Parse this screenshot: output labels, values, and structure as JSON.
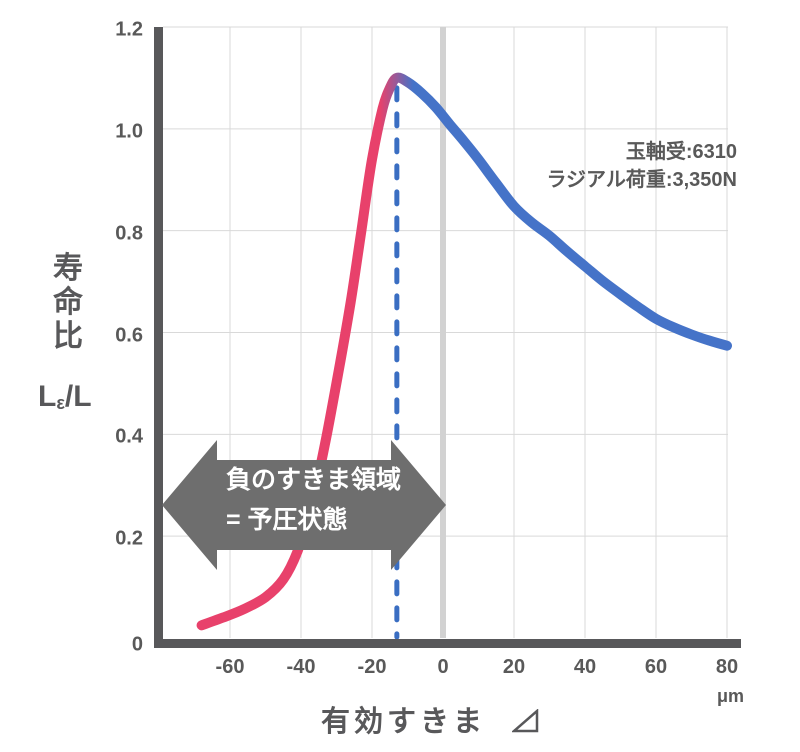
{
  "chart_data": {
    "type": "line",
    "title": "",
    "xlabel": "有効すきま　⊿",
    "xlabel_text": "有効すきま",
    "xlabel_symbol": "⊿",
    "x_unit": "μm",
    "ylabel": "寿命比 Lε/L",
    "ylabel_vertical": "寿命比",
    "ylabel_formula": {
      "main": "L",
      "sub": "ε",
      "rest": "/L"
    },
    "xlim": [
      -80,
      83
    ],
    "ylim": [
      0,
      1.2
    ],
    "grid": true,
    "x_ticks": {
      "values": [
        -60,
        -40,
        -20,
        0,
        20,
        40,
        60,
        80
      ],
      "labels": [
        "-60",
        "-40",
        "-20",
        "0",
        "20",
        "40",
        "60",
        "80"
      ]
    },
    "y_ticks": {
      "values": [
        0,
        0.2,
        0.4,
        0.6,
        0.8,
        1.0,
        1.2
      ],
      "labels": [
        "0",
        "0.2",
        "0.4",
        "0.6",
        "0.8",
        "1.0",
        "1.2"
      ]
    },
    "series": [
      {
        "name": "life-ratio-vs-effective-clearance",
        "points": [
          [
            -68,
            0.025
          ],
          [
            -62,
            0.04
          ],
          [
            -56,
            0.057
          ],
          [
            -50,
            0.08
          ],
          [
            -45,
            0.115
          ],
          [
            -41,
            0.17
          ],
          [
            -37,
            0.26
          ],
          [
            -33,
            0.39
          ],
          [
            -29,
            0.54
          ],
          [
            -26,
            0.66
          ],
          [
            -23,
            0.8
          ],
          [
            -20,
            0.94
          ],
          [
            -17,
            1.04
          ],
          [
            -15,
            1.08
          ],
          [
            -13,
            1.1
          ],
          [
            -10,
            1.092
          ],
          [
            -6,
            1.07
          ],
          [
            -2,
            1.042
          ],
          [
            2,
            1.008
          ],
          [
            6,
            0.975
          ],
          [
            10,
            0.94
          ],
          [
            15,
            0.893
          ],
          [
            20,
            0.848
          ],
          [
            25,
            0.816
          ],
          [
            30,
            0.79
          ],
          [
            35,
            0.759
          ],
          [
            40,
            0.73
          ],
          [
            45,
            0.701
          ],
          [
            50,
            0.675
          ],
          [
            55,
            0.65
          ],
          [
            60,
            0.627
          ],
          [
            65,
            0.61
          ],
          [
            70,
            0.596
          ],
          [
            75,
            0.584
          ],
          [
            80,
            0.574
          ]
        ]
      }
    ],
    "peak": {
      "x": -13,
      "y": 1.1,
      "marker": "dashed-vertical-line"
    },
    "zero_clearance_line_x": 0,
    "annotations": [
      {
        "name": "bearing-info",
        "lines": [
          "玉軸受:6310",
          "ラジアル荷重:3,350N"
        ]
      },
      {
        "name": "preload-region-arrow",
        "lines": [
          "負のすきま領域",
          "= 予圧状態"
        ],
        "x_range_um": [
          -79,
          -1
        ]
      }
    ],
    "legend": null
  },
  "colors": {
    "curve_negative_clearance": "#e8416b",
    "curve_positive_clearance": "#4573c8",
    "peak_dash_line": "#3a6ec2",
    "axis": "#58585a",
    "gridline": "#d9d9d9",
    "zero_line": "#d2d2d2",
    "arrow_fill": "#6e6e6e",
    "arrow_text": "#ffffff",
    "label_text": "#595959"
  },
  "icons": {
    "clearance_delta": "⊿"
  }
}
